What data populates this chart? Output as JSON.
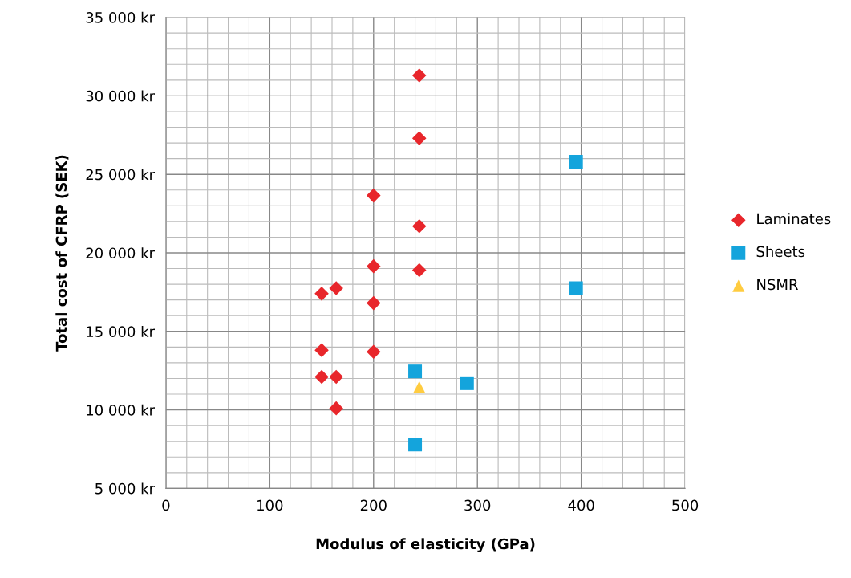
{
  "chart_data": {
    "type": "scatter",
    "xlabel": "Modulus of elasticity (GPa)",
    "ylabel": "Total cost of CFRP (SEK)",
    "xlim": [
      0,
      500
    ],
    "xticks": [
      0,
      100,
      200,
      300,
      400,
      500
    ],
    "ylim": [
      5000,
      35000
    ],
    "yticks": [
      {
        "value": 5000,
        "label": "5 000 kr"
      },
      {
        "value": 10000,
        "label": "10 000 kr"
      },
      {
        "value": 15000,
        "label": "15 000 kr"
      },
      {
        "value": 20000,
        "label": "20 000 kr"
      },
      {
        "value": 25000,
        "label": "25 000 kr"
      },
      {
        "value": 30000,
        "label": "30 000 kr"
      },
      {
        "value": 35000,
        "label": "35 000 kr"
      }
    ],
    "grid": true,
    "legend": "right",
    "series": [
      {
        "name": "Laminates",
        "color": "#e8262b",
        "marker": "diamond",
        "x": [
          244,
          244,
          200,
          244,
          200,
          244,
          150,
          164,
          200,
          150,
          200,
          150,
          164,
          164
        ],
        "values": [
          31300,
          27300,
          23650,
          21700,
          19150,
          18900,
          17400,
          17750,
          16800,
          13800,
          13700,
          12100,
          12100,
          10100
        ]
      },
      {
        "name": "Sheets",
        "color": "#14a4dc",
        "marker": "square",
        "x": [
          395,
          395,
          240,
          290,
          240
        ],
        "values": [
          25800,
          17750,
          12450,
          11700,
          7800
        ]
      },
      {
        "name": "NSMR",
        "color": "#ffcc40",
        "marker": "triangle",
        "x": [
          244
        ],
        "values": [
          11450
        ]
      }
    ]
  }
}
